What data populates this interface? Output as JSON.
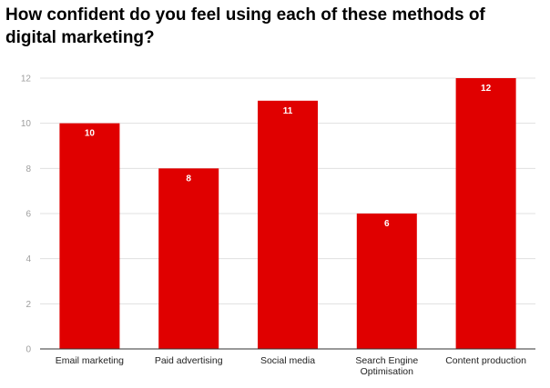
{
  "chart_data": {
    "type": "bar",
    "title": "How confident do you feel using each of these methods of digital marketing?",
    "categories": [
      "Email marketing",
      "Paid advertising",
      "Social media",
      "Search Engine Optimisation",
      "Content production"
    ],
    "category_lines": [
      [
        "Email marketing"
      ],
      [
        "Paid advertising"
      ],
      [
        "Social media"
      ],
      [
        "Search Engine",
        "Optimisation"
      ],
      [
        "Content production"
      ]
    ],
    "values": [
      10,
      8,
      11,
      6,
      12
    ],
    "data_labels": [
      "10",
      "8",
      "11",
      "6",
      "12"
    ],
    "yticks": [
      0,
      2,
      4,
      6,
      8,
      10,
      12
    ],
    "ylim": [
      0,
      12
    ],
    "xlabel": "",
    "ylabel": "",
    "grid": true,
    "legend": "none",
    "bar_color": "#e00000",
    "grid_color": "#e0e0e0",
    "axis_color": "#333333"
  }
}
